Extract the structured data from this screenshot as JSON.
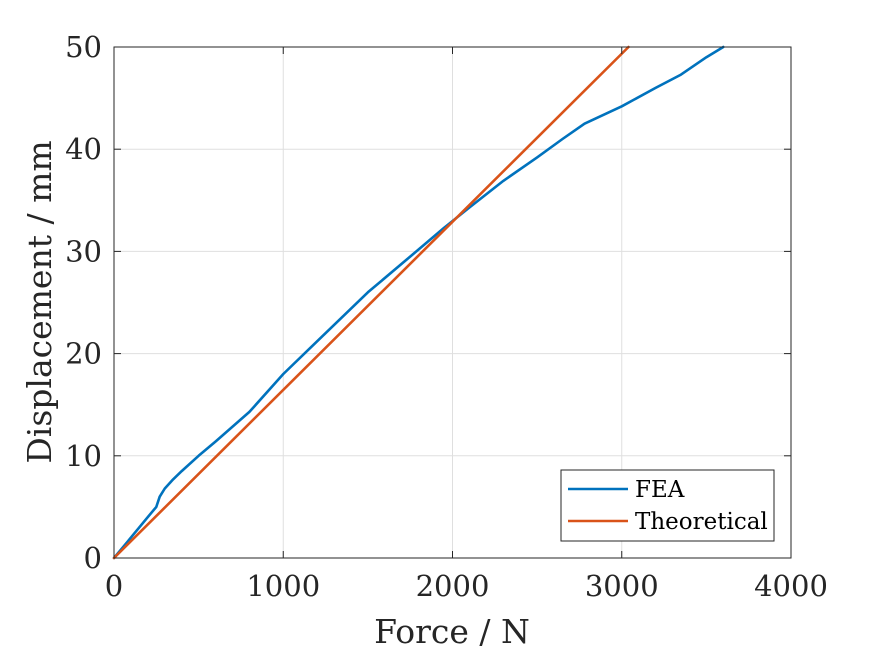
{
  "chart_data": {
    "type": "line",
    "xlabel": "Force / N",
    "ylabel": "Displacement / mm",
    "xlim": [
      0,
      4000
    ],
    "ylim": [
      0,
      50
    ],
    "x_ticks": [
      "0",
      "1000",
      "2000",
      "3000",
      "4000"
    ],
    "y_ticks": [
      "0",
      "10",
      "20",
      "30",
      "40",
      "50"
    ],
    "grid": true,
    "legend_position": "bottom-right",
    "series": [
      {
        "name": "FEA",
        "color": "#0072BD",
        "x": [
          0,
          100,
          200,
          250,
          270,
          300,
          350,
          400,
          500,
          600,
          800,
          1000,
          1200,
          1500,
          1800,
          1950,
          2100,
          2300,
          2500,
          2650,
          2780,
          3000,
          3200,
          3350,
          3500,
          3600
        ],
        "y": [
          0,
          2.0,
          4.0,
          5.0,
          6.0,
          6.8,
          7.7,
          8.5,
          10.0,
          11.4,
          14.3,
          18.0,
          21.2,
          26.0,
          30.2,
          32.3,
          34.3,
          36.9,
          39.2,
          41.0,
          42.5,
          44.2,
          46.0,
          47.3,
          49.0,
          50.0
        ]
      },
      {
        "name": "Theoretical",
        "color": "#D95319",
        "x": [
          0,
          3040
        ],
        "y": [
          0,
          50
        ]
      }
    ]
  }
}
